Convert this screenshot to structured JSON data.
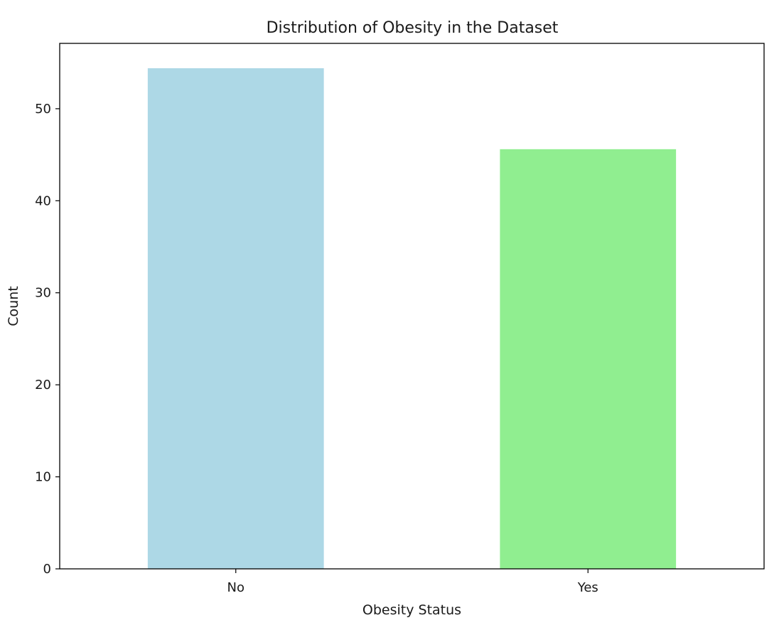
{
  "chart_data": {
    "type": "bar",
    "title": "Distribution of Obesity in the Dataset",
    "xlabel": "Obesity Status",
    "ylabel": "Count",
    "categories": [
      "No",
      "Yes"
    ],
    "values": [
      54.4,
      45.6
    ],
    "ylim": [
      0,
      57.1
    ],
    "yticks": [
      0,
      10,
      20,
      30,
      40,
      50
    ],
    "colors": [
      "#add8e6",
      "#90ee90"
    ],
    "grid": false,
    "legend": "none"
  }
}
